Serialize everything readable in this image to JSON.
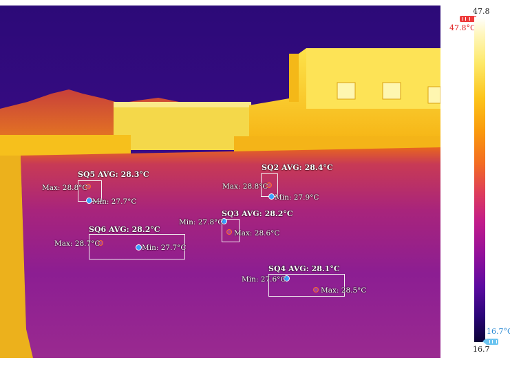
{
  "palette": {
    "roi_border": "#f2f2f2",
    "max_marker": "#ff6a2a",
    "min_marker": "#3aa0ff",
    "max_flag": "#ee3a3a",
    "min_flag": "#6cc4f0"
  },
  "scale": {
    "top_value": "47.8",
    "bottom_value": "16.7",
    "max_temp": "47.8°C",
    "min_temp": "16.7°C"
  },
  "regions": [
    {
      "id": "SQ5",
      "title": "SQ5 AVG: 28.3°C",
      "max": "Max: 28.8°C",
      "min": "Min: 27.7°C"
    },
    {
      "id": "SQ2",
      "title": "SQ2 AVG: 28.4°C",
      "max": "Max: 28.8°C",
      "min": "Min: 27.9°C"
    },
    {
      "id": "SQ3",
      "title": "SQ3 AVG: 28.2°C",
      "max": "Max: 28.6°C",
      "min": "Min: 27.8°C"
    },
    {
      "id": "SQ6",
      "title": "SQ6 AVG: 28.2°C",
      "max": "Max: 28.7°C",
      "min": "Min: 27.7°C"
    },
    {
      "id": "SQ4",
      "title": "SQ4 AVG: 28.1°C",
      "max": "Max: 28.5°C",
      "min": "Min: 27.6°C"
    }
  ]
}
